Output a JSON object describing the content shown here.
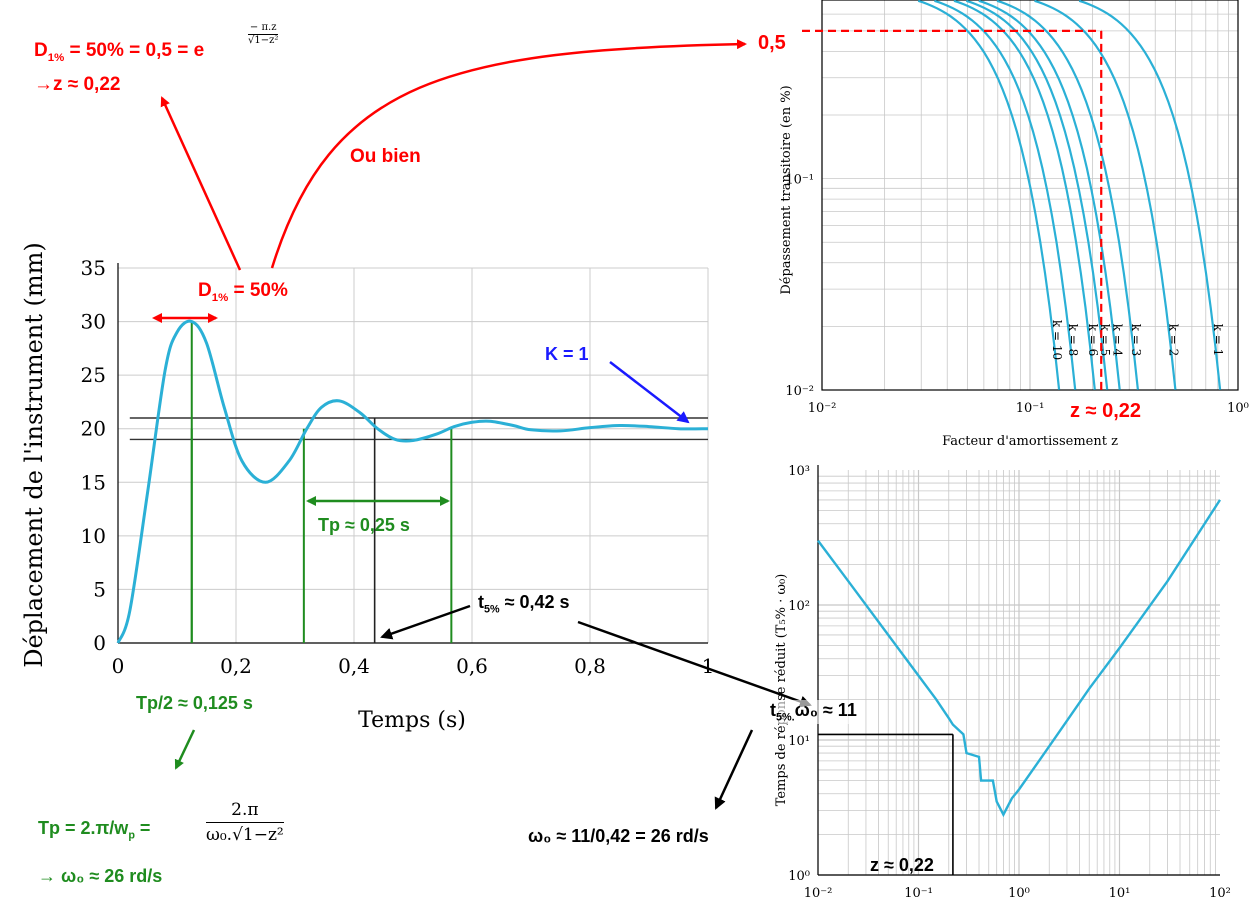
{
  "chart_data": [
    {
      "type": "line",
      "id": "step-response",
      "xlabel": "Temps (s)",
      "ylabel": "Déplacement de l'instrument (mm)",
      "xlim": [
        0,
        1
      ],
      "ylim": [
        0,
        35
      ],
      "x_ticks": [
        "0",
        "0,2",
        "0,4",
        "0,6",
        "0,8",
        "1"
      ],
      "y_ticks": [
        "0",
        "5",
        "10",
        "15",
        "20",
        "25",
        "30",
        "35"
      ],
      "grid": true,
      "series": [
        {
          "x": [
            0,
            0.02,
            0.05,
            0.08,
            0.1,
            0.125,
            0.15,
            0.18,
            0.21,
            0.25,
            0.29,
            0.32,
            0.345,
            0.375,
            0.41,
            0.44,
            0.47,
            0.5,
            0.54,
            0.57,
            0.6,
            0.63,
            0.67,
            0.7,
            0.75,
            0.8,
            0.85,
            0.9,
            0.95,
            1.0
          ],
          "y": [
            0,
            3,
            14,
            25.5,
            29,
            30,
            28,
            22,
            17,
            15,
            17,
            20,
            22,
            22.6,
            21.5,
            20,
            19,
            18.9,
            19.5,
            20.2,
            20.6,
            20.7,
            20.3,
            19.9,
            19.8,
            20.1,
            20.3,
            20.2,
            20,
            20
          ]
        }
      ],
      "band_lines_y": [
        21,
        19
      ],
      "green_lines_x": [
        0.125,
        0.315,
        0.565
      ],
      "black_line_x": 0.435
    },
    {
      "type": "line",
      "id": "overshoot-chart",
      "xlabel": "Facteur d'amortissement z",
      "ylabel": "Dépassement transitoire (en %)",
      "x_scale": "log",
      "y_scale": "log",
      "xlim": [
        0.01,
        1
      ],
      "ylim": [
        0.01,
        0.7
      ],
      "x_ticks": [
        "10⁻²",
        "10⁻¹",
        "10⁰"
      ],
      "y_ticks": [
        "10⁻²",
        "10⁻¹"
      ],
      "grid": true,
      "curve_labels": [
        "k = 10",
        "k = 8",
        "k = 6",
        "k = 5",
        "k = 4",
        "k = 3",
        "k = 2",
        "k = 1"
      ],
      "curve_end_z": [
        0.138,
        0.165,
        0.205,
        0.235,
        0.27,
        0.33,
        0.5,
        0.82
      ],
      "marker": {
        "z": 0.22,
        "y": 0.5
      }
    },
    {
      "type": "line",
      "id": "response-time-chart",
      "xlabel": "",
      "ylabel": "Temps de réponse réduit (T₅% · ω₀)",
      "x_scale": "log",
      "y_scale": "log",
      "xlim": [
        0.01,
        100
      ],
      "ylim": [
        1,
        1000
      ],
      "x_ticks": [
        "10⁻²",
        "10⁻¹",
        "10⁰",
        "10¹",
        "10²"
      ],
      "y_ticks": [
        "10⁰",
        "10¹",
        "10²",
        "10³"
      ],
      "grid": true,
      "series": [
        {
          "x": [
            0.01,
            0.02,
            0.05,
            0.1,
            0.15,
            0.2,
            0.22,
            0.28,
            0.3,
            0.4,
            0.42,
            0.55,
            0.6,
            0.7,
            0.85,
            1,
            2,
            5,
            10,
            30,
            100
          ],
          "y": [
            300,
            150,
            60,
            30,
            20,
            14.5,
            13,
            11,
            8,
            7.5,
            5,
            5,
            3.5,
            2.8,
            3.7,
            4.3,
            9,
            24,
            48,
            150,
            600
          ]
        }
      ],
      "marker": {
        "z": 0.22,
        "y": 11
      }
    }
  ],
  "annotations": {
    "d1_formula_lhs": "D",
    "d1_sub": "1%",
    "d1_formula_mid": " = 50% = 0,5 = e",
    "d1_exponent_num": "π.z",
    "d1_exponent_den": "√1−z²",
    "z_result": "→z ≈ 0,22",
    "ou_bien": "Ou bien",
    "d1_label_main": "D",
    "d1_label_sub": "1%",
    "d1_label_value": " = 50%",
    "k_label": "K = 1",
    "tp_label": "Tp ≈ 0,25 s",
    "t5_label_main": "t",
    "t5_label_sub": "5%",
    "t5_label_value": " ≈ 0,42 s",
    "tp2_label": "Tp/2 ≈ 0,125 s",
    "tp_formula_lhs": "Tp = 2.π/w",
    "tp_formula_sub": "p",
    "tp_formula_eq": " =",
    "tp_formula_num": "2.π",
    "tp_formula_den": "ω₀.√1−z²",
    "omega_result_green": "→ ω₀ ≈ 26 rd/s",
    "half_value": "0,5",
    "z_marker_top": "z ≈ 0,22",
    "t5_omega_main": "t",
    "t5_omega_sub": "5%.",
    "t5_omega_value": "ω₀ ≈ 11",
    "omega_calc": "ω₀ ≈ 11/0,42 = 26 rd/s",
    "z_marker_bottom": "z ≈ 0,22"
  }
}
